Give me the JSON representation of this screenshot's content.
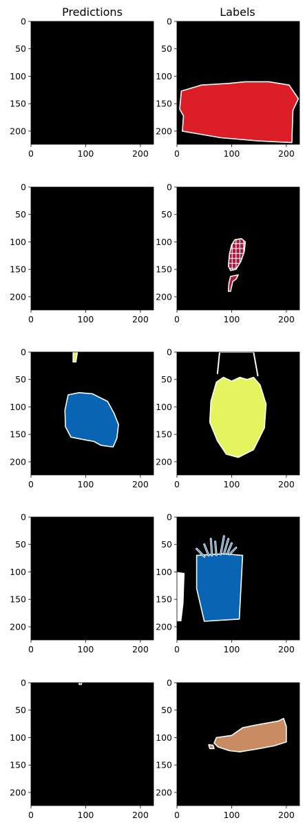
{
  "figure": {
    "column_titles": [
      "Predictions",
      "Labels"
    ]
  },
  "colors": {
    "background": "#000000",
    "outline": "#ffffff",
    "red": "#dc1f26",
    "crimson": "#b0173a",
    "yellow": "#e4f45e",
    "blue": "#0a64b4",
    "tan": "#c98c62"
  },
  "chart_data": {
    "type": "heatmap",
    "grid": false,
    "rows": 5,
    "cols": 2,
    "image_size": [
      224,
      224
    ],
    "axes": {
      "xlim": [
        0,
        224
      ],
      "ylim": [
        224,
        0
      ],
      "xticks": [
        0,
        100,
        200
      ],
      "yticks": [
        0,
        50,
        100,
        150,
        200
      ]
    },
    "panels": [
      {
        "row": 0,
        "col": 0,
        "title": "Predictions",
        "segments": []
      },
      {
        "row": 0,
        "col": 1,
        "title": "Labels",
        "segments": [
          {
            "color": "red",
            "points": [
              [
                8,
                127
              ],
              [
                45,
                116
              ],
              [
                95,
                113
              ],
              [
                125,
                110
              ],
              [
                168,
                110
              ],
              [
                205,
                116
              ],
              [
                222,
                141
              ],
              [
                212,
                162
              ],
              [
                210,
                221
              ],
              [
                150,
                218
              ],
              [
                80,
                212
              ],
              [
                10,
                200
              ],
              [
                12,
                172
              ],
              [
                5,
                160
              ]
            ]
          }
        ]
      },
      {
        "row": 1,
        "col": 0,
        "segments": []
      },
      {
        "row": 1,
        "col": 1,
        "segments": [
          {
            "color": "crimson",
            "pattern": "grid",
            "points": [
              [
                106,
                96
              ],
              [
                118,
                94
              ],
              [
                125,
                100
              ],
              [
                123,
                118
              ],
              [
                117,
                135
              ],
              [
                108,
                150
              ],
              [
                98,
                152
              ],
              [
                94,
                144
              ],
              [
                96,
                122
              ],
              [
                100,
                105
              ]
            ]
          },
          {
            "color": "crimson",
            "points": [
              [
                98,
                163
              ],
              [
                112,
                160
              ],
              [
                108,
                168
              ],
              [
                102,
                172
              ],
              [
                98,
                190
              ],
              [
                94,
                190
              ],
              [
                95,
                175
              ]
            ]
          }
        ]
      },
      {
        "row": 2,
        "col": 0,
        "segments": [
          {
            "color": "blue",
            "points": [
              [
                68,
                78
              ],
              [
                88,
                74
              ],
              [
                112,
                76
              ],
              [
                140,
                90
              ],
              [
                152,
                112
              ],
              [
                160,
                132
              ],
              [
                157,
                157
              ],
              [
                150,
                173
              ],
              [
                128,
                170
              ],
              [
                115,
                163
              ],
              [
                98,
                160
              ],
              [
                73,
                155
              ],
              [
                63,
                136
              ],
              [
                62,
                106
              ]
            ]
          },
          {
            "color": "yellow",
            "points": [
              [
                77,
                0
              ],
              [
                85,
                0
              ],
              [
                82,
                18
              ],
              [
                77,
                18
              ]
            ]
          }
        ]
      },
      {
        "row": 2,
        "col": 1,
        "segments": [
          {
            "color": "yellow",
            "points": [
              [
                72,
                55
              ],
              [
                85,
                46
              ],
              [
                100,
                53
              ],
              [
                115,
                46
              ],
              [
                128,
                50
              ],
              [
                140,
                46
              ],
              [
                152,
                60
              ],
              [
                163,
                95
              ],
              [
                160,
                138
              ],
              [
                140,
                178
              ],
              [
                112,
                192
              ],
              [
                90,
                186
              ],
              [
                74,
                162
              ],
              [
                60,
                128
              ],
              [
                62,
                90
              ]
            ]
          }
        ],
        "outlines": [
          {
            "points": [
              [
                78,
                0
              ],
              [
                140,
                0
              ],
              [
                148,
                44
              ]
            ],
            "closed": false
          },
          {
            "points": [
              [
                78,
                0
              ],
              [
                74,
                40
              ]
            ],
            "closed": false
          }
        ]
      },
      {
        "row": 3,
        "col": 0,
        "segments": []
      },
      {
        "row": 3,
        "col": 1,
        "segments": [
          {
            "color": "blue",
            "points": [
              [
                36,
                70
              ],
              [
                85,
                67
              ],
              [
                120,
                70
              ],
              [
                114,
                186
              ],
              [
                50,
                190
              ],
              [
                36,
                130
              ]
            ]
          },
          {
            "color": "outline",
            "points": [
              [
                0,
                100
              ],
              [
                14,
                102
              ],
              [
                12,
                158
              ],
              [
                8,
                190
              ],
              [
                0,
                190
              ]
            ]
          }
        ],
        "strands": [
          [
            [
              50,
              72
            ],
            [
              36,
              58
            ]
          ],
          [
            [
              58,
              70
            ],
            [
              50,
              50
            ]
          ],
          [
            [
              64,
              70
            ],
            [
              62,
              40
            ]
          ],
          [
            [
              72,
              69
            ],
            [
              70,
              45
            ]
          ],
          [
            [
              80,
              68
            ],
            [
              86,
              35
            ]
          ],
          [
            [
              86,
              67
            ],
            [
              94,
              40
            ]
          ],
          [
            [
              92,
              67
            ],
            [
              100,
              48
            ]
          ],
          [
            [
              96,
              68
            ],
            [
              108,
              56
            ]
          ]
        ]
      },
      {
        "row": 4,
        "col": 0,
        "segments": [
          {
            "color": "blue",
            "points": [
              [
                88,
                0
              ],
              [
                93,
                0
              ],
              [
                92,
                3
              ],
              [
                88,
                3
              ]
            ]
          }
        ]
      },
      {
        "row": 4,
        "col": 1,
        "segments": [
          {
            "color": "tan",
            "points": [
              [
                72,
                100
              ],
              [
                100,
                96
              ],
              [
                120,
                82
              ],
              [
                150,
                76
              ],
              [
                185,
                70
              ],
              [
                195,
                65
              ],
              [
                200,
                80
              ],
              [
                200,
                108
              ],
              [
                178,
                115
              ],
              [
                140,
                122
              ],
              [
                115,
                126
              ],
              [
                96,
                124
              ],
              [
                75,
                117
              ],
              [
                68,
                110
              ]
            ]
          },
          {
            "color": "tan",
            "points": [
              [
                58,
                113
              ],
              [
                66,
                114
              ],
              [
                68,
                120
              ],
              [
                60,
                120
              ]
            ]
          }
        ]
      }
    ]
  }
}
